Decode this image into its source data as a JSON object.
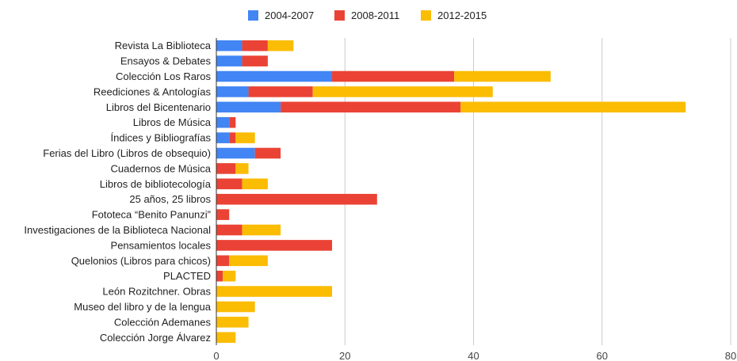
{
  "chart_data": {
    "type": "bar",
    "orientation": "horizontal",
    "stacked": true,
    "title": "",
    "xlabel": "",
    "ylabel": "",
    "xlim": [
      0,
      80
    ],
    "x_ticks": [
      0,
      20,
      40,
      60,
      80
    ],
    "grid": true,
    "legend_position": "top",
    "categories": [
      "Revista La Biblioteca",
      "Ensayos & Debates",
      "Colección Los Raros",
      "Reediciones & Antologías",
      "Libros del Bicentenario",
      "Libros de Música",
      "Índices y Bibliografías",
      "Ferias del Libro (Libros de obsequio)",
      "Cuadernos de Música",
      "Libros de bibliotecología",
      "25 años, 25 libros",
      "Fototeca “Benito Panunzi”",
      "Investigaciones de la Biblioteca Nacional",
      "Pensamientos locales",
      "Quelonios (Libros para chicos)",
      "PLACTED",
      "León Rozitchner. Obras",
      "Museo del libro y de la lengua",
      "Colección Ademanes",
      "Colección Jorge Álvarez"
    ],
    "series": [
      {
        "name": "2004-2007",
        "color": "#4285f4",
        "values": [
          4,
          4,
          18,
          5,
          10,
          2,
          2,
          6,
          0,
          0,
          0,
          0,
          0,
          0,
          0,
          0,
          0,
          0,
          0,
          0
        ]
      },
      {
        "name": "2008-2011",
        "color": "#ea4335",
        "values": [
          4,
          4,
          19,
          10,
          28,
          1,
          1,
          4,
          3,
          4,
          25,
          2,
          4,
          18,
          2,
          1,
          0,
          0,
          0,
          0
        ]
      },
      {
        "name": "2012-2015",
        "color": "#fbbc04",
        "values": [
          4,
          0,
          15,
          28,
          35,
          0,
          3,
          0,
          2,
          4,
          0,
          0,
          6,
          0,
          6,
          2,
          18,
          6,
          5,
          3
        ]
      }
    ]
  }
}
